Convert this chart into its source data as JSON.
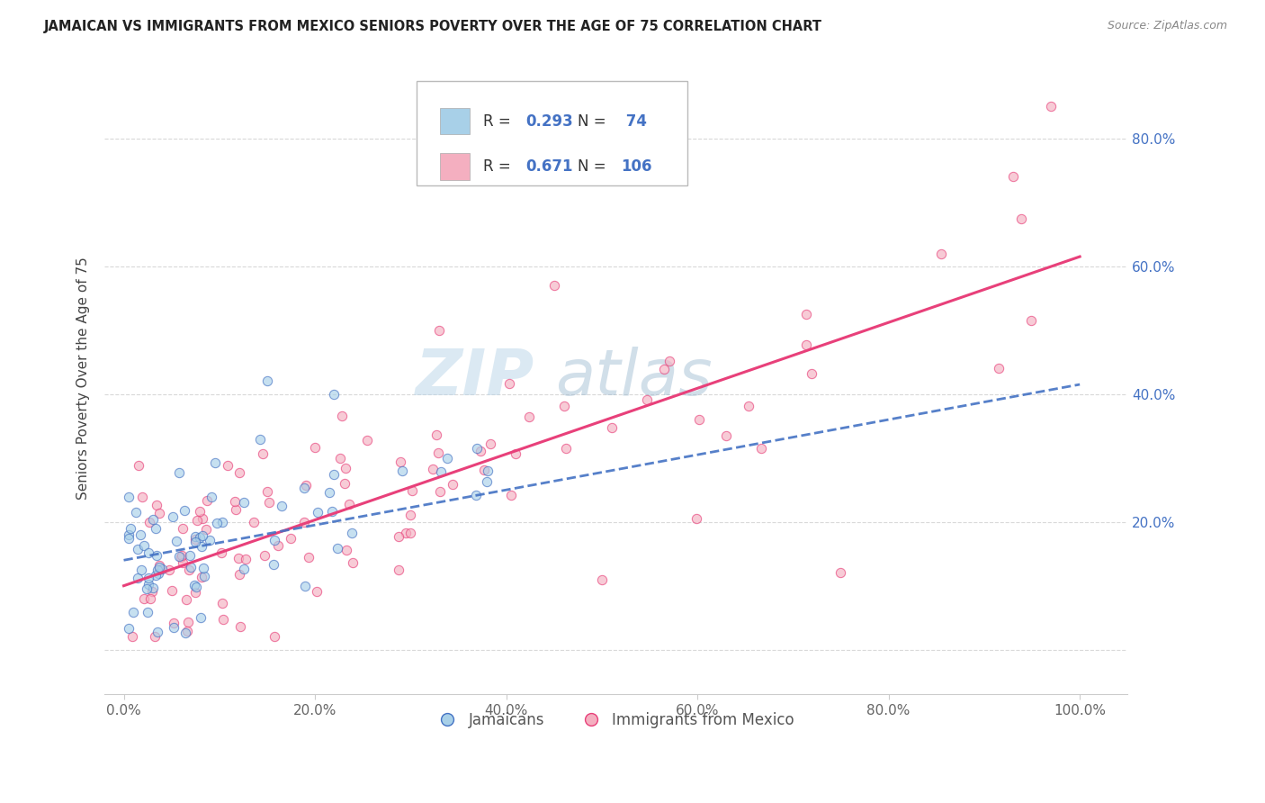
{
  "title": "JAMAICAN VS IMMIGRANTS FROM MEXICO SENIORS POVERTY OVER THE AGE OF 75 CORRELATION CHART",
  "source": "Source: ZipAtlas.com",
  "ylabel": "Seniors Poverty Over the Age of 75",
  "xlim": [
    -0.02,
    1.05
  ],
  "ylim": [
    -0.07,
    0.92
  ],
  "ytick_vals": [
    0.0,
    0.2,
    0.4,
    0.6,
    0.8
  ],
  "ytick_labels": [
    "",
    "20.0%",
    "40.0%",
    "60.0%",
    "80.0%"
  ],
  "xtick_vals": [
    0.0,
    0.2,
    0.4,
    0.6,
    0.8,
    1.0
  ],
  "xtick_labels": [
    "0.0%",
    "20.0%",
    "40.0%",
    "60.0%",
    "80.0%",
    "100.0%"
  ],
  "jamaican_R": 0.293,
  "jamaican_N": 74,
  "mexico_R": 0.671,
  "mexico_N": 106,
  "blue_scatter_color": "#a8d0e8",
  "pink_scatter_color": "#f4afc0",
  "blue_line_color": "#4472c4",
  "pink_line_color": "#e8407a",
  "legend_label1": "Jamaicans",
  "legend_label2": "Immigrants from Mexico",
  "jam_reg": [
    0.14,
    0.415
  ],
  "mex_reg": [
    0.1,
    0.615
  ],
  "watermark_zip": "ZIP",
  "watermark_atlas": "atlas"
}
